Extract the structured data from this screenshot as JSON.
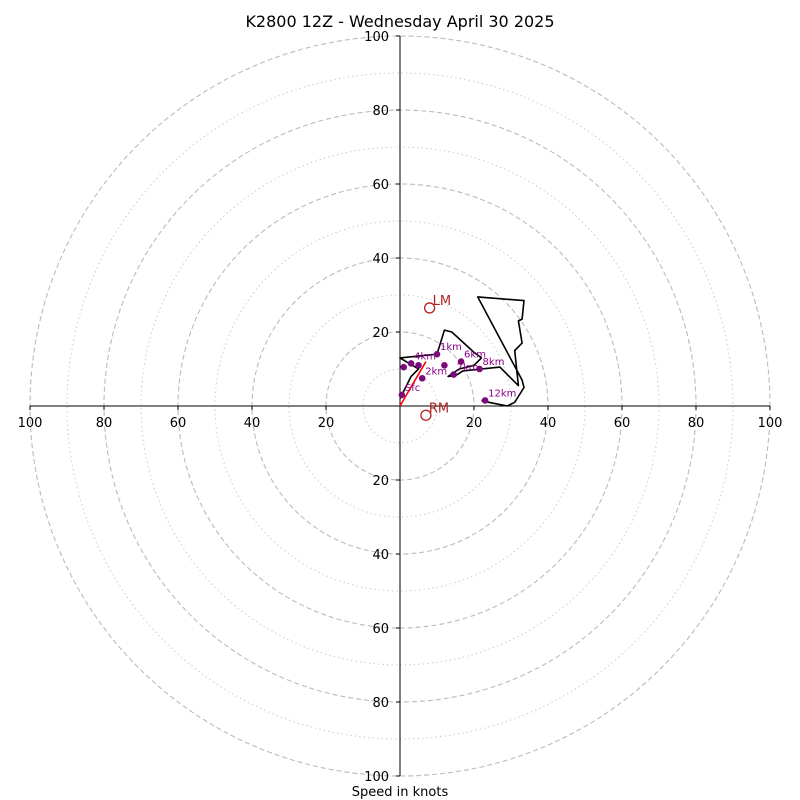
{
  "chart_data": {
    "type": "hodograph",
    "title": "K2800 12Z - Wednesday April 30 2025",
    "xlabel": "Speed in knots",
    "max_speed": 100,
    "ring_major": [
      20,
      40,
      60,
      80,
      100
    ],
    "ring_minor": [
      10,
      30,
      50,
      70,
      90
    ],
    "x_ticks": [
      {
        "value": -100,
        "label": "100"
      },
      {
        "value": -80,
        "label": "80"
      },
      {
        "value": -60,
        "label": "60"
      },
      {
        "value": -40,
        "label": "40"
      },
      {
        "value": -20,
        "label": "20"
      },
      {
        "value": 20,
        "label": "20"
      },
      {
        "value": 40,
        "label": "40"
      },
      {
        "value": 60,
        "label": "60"
      },
      {
        "value": 80,
        "label": "80"
      },
      {
        "value": 100,
        "label": "100"
      }
    ],
    "y_ticks": [
      {
        "value": 100,
        "label": "100"
      },
      {
        "value": 80,
        "label": "80"
      },
      {
        "value": 60,
        "label": "60"
      },
      {
        "value": 40,
        "label": "40"
      },
      {
        "value": 20,
        "label": "20"
      },
      {
        "value": -20,
        "label": "20"
      },
      {
        "value": -40,
        "label": "40"
      },
      {
        "value": -60,
        "label": "60"
      },
      {
        "value": -80,
        "label": "80"
      },
      {
        "value": -100,
        "label": "100"
      }
    ],
    "hodograph_trace": [
      [
        0,
        2
      ],
      [
        1,
        4
      ],
      [
        2,
        6
      ],
      [
        3,
        8
      ],
      [
        5,
        10
      ],
      [
        0,
        13
      ],
      [
        5,
        13.5
      ],
      [
        10,
        14
      ],
      [
        12,
        20.5
      ],
      [
        14,
        20
      ],
      [
        20,
        14.5
      ],
      [
        22,
        13
      ],
      [
        20,
        11
      ],
      [
        16,
        10
      ],
      [
        13,
        8
      ],
      [
        15,
        8.2
      ],
      [
        17,
        9.5
      ],
      [
        27,
        10.5
      ],
      [
        32,
        5.5
      ],
      [
        31,
        15
      ],
      [
        33,
        17
      ],
      [
        32,
        23
      ],
      [
        33,
        23.5
      ],
      [
        33.5,
        28.5
      ],
      [
        21,
        29.5
      ],
      [
        33,
        7
      ],
      [
        33.5,
        5
      ],
      [
        31,
        1
      ],
      [
        29,
        0
      ],
      [
        24,
        1
      ],
      [
        22,
        1.5
      ]
    ],
    "points": [
      {
        "label": "Sfc",
        "u": 0.5,
        "v": 3
      },
      {
        "label": "",
        "u": 1,
        "v": 10.5
      },
      {
        "label": "2km",
        "u": 6,
        "v": 7.5
      },
      {
        "label": "4km",
        "u": 3,
        "v": 11.5
      },
      {
        "label": "",
        "u": 5,
        "v": 11
      },
      {
        "label": "1km",
        "u": 10,
        "v": 14
      },
      {
        "label": "",
        "u": 12,
        "v": 11
      },
      {
        "label": "6km",
        "u": 16.5,
        "v": 12
      },
      {
        "label": "7km",
        "u": 14.5,
        "v": 8.5
      },
      {
        "label": "8km",
        "u": 21.5,
        "v": 10
      },
      {
        "label": "12km",
        "u": 23,
        "v": 1.5
      }
    ],
    "storm_motion": [
      {
        "label": "LM",
        "u": 8,
        "v": 26.5
      },
      {
        "label": "RM",
        "u": 7,
        "v": -2.5
      }
    ],
    "shear_vector": [
      [
        0,
        0
      ],
      [
        7,
        12
      ]
    ],
    "colors": {
      "trace": "#000000",
      "points": "#7b0a7b",
      "point_labels": "#8b008b",
      "storm": "#b22222",
      "shear": "#ff0000",
      "rings": "#bbbbbb"
    },
    "grid": true
  }
}
